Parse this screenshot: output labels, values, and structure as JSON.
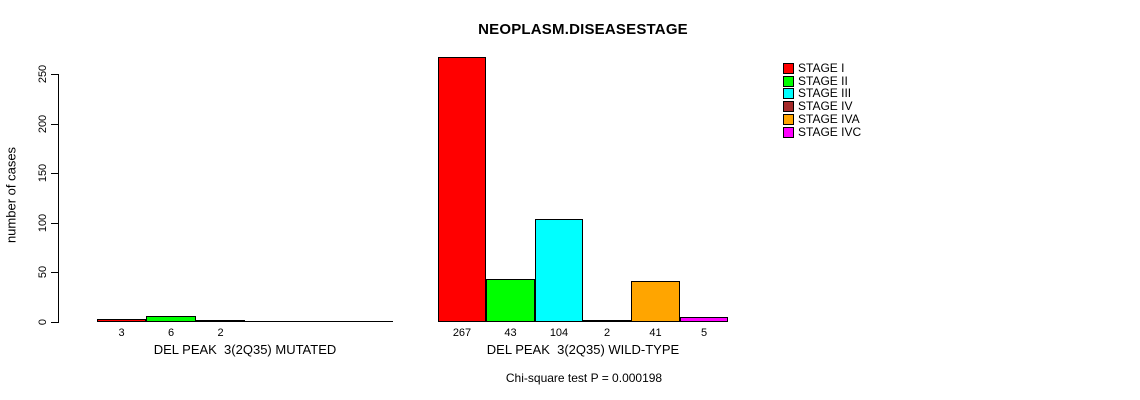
{
  "title": "NEOPLASM.DISEASESTAGE",
  "ylabel": "number of cases",
  "footer": "Chi-square test P = 0.000198",
  "legend": [
    {
      "label": "STAGE I",
      "color": "#FF0000"
    },
    {
      "label": "STAGE II",
      "color": "#00FF00"
    },
    {
      "label": "STAGE III",
      "color": "#00FFFF"
    },
    {
      "label": "STAGE IV",
      "color": "#A52A2A"
    },
    {
      "label": "STAGE IVA",
      "color": "#FFA500"
    },
    {
      "label": "STAGE IVC",
      "color": "#FF00FF"
    }
  ],
  "chart_data": {
    "type": "bar",
    "title": "NEOPLASM.DISEASESTAGE",
    "ylabel": "number of cases",
    "xlabel": "",
    "ylim": [
      0,
      250
    ],
    "yticks": [
      0,
      50,
      100,
      150,
      200,
      250
    ],
    "grid": false,
    "legend_position": "right",
    "categories": [
      "DEL PEAK  3(2Q35) MUTATED",
      "DEL PEAK  3(2Q35) WILD-TYPE"
    ],
    "series": [
      {
        "name": "STAGE I",
        "color": "#FF0000",
        "values": [
          3,
          267
        ]
      },
      {
        "name": "STAGE II",
        "color": "#00FF00",
        "values": [
          6,
          43
        ]
      },
      {
        "name": "STAGE III",
        "color": "#00FFFF",
        "values": [
          2,
          104
        ]
      },
      {
        "name": "STAGE IV",
        "color": "#A52A2A",
        "values": [
          0,
          2
        ]
      },
      {
        "name": "STAGE IVA",
        "color": "#FFA500",
        "values": [
          0,
          41
        ]
      },
      {
        "name": "STAGE IVC",
        "color": "#FF00FF",
        "values": [
          0,
          5
        ]
      }
    ],
    "value_labels": "shown under each bar when value > 0",
    "annotation": "Chi-square test P = 0.000198"
  }
}
